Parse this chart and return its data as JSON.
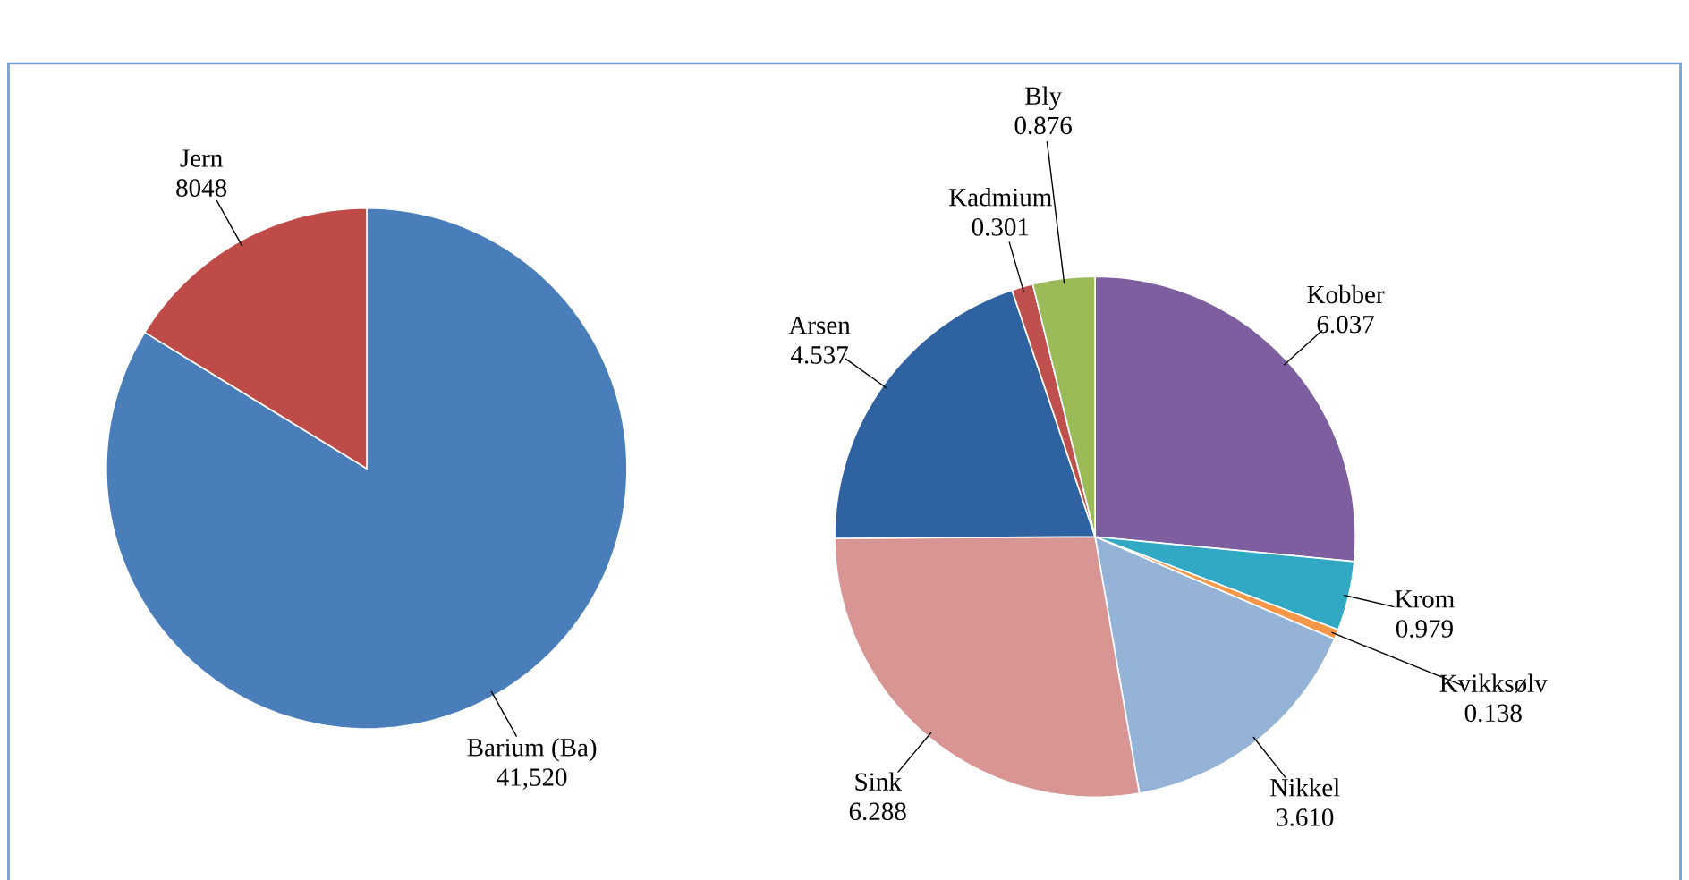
{
  "chart_data": [
    {
      "type": "pie",
      "categories": [
        "Barium (Ba)",
        "Jern"
      ],
      "values": [
        41520,
        8048
      ],
      "value_labels": [
        "41,520",
        "8048"
      ],
      "colors": [
        "#4a7ebb",
        "#be4b48"
      ]
    },
    {
      "type": "pie",
      "categories": [
        "Kobber",
        "Krom",
        "Kvikksølv",
        "Nikkel",
        "Sink",
        "Arsen",
        "Kadmium",
        "Bly"
      ],
      "values": [
        6.037,
        0.979,
        0.138,
        3.61,
        6.288,
        4.537,
        0.301,
        0.876
      ],
      "value_labels": [
        "6.037",
        "0.979",
        "0.138",
        "3.610",
        "6.288",
        "4.537",
        "0.301",
        "0.876"
      ],
      "colors": [
        "#7d5fa0",
        "#31a9c4",
        "#f79646",
        "#95b3d7",
        "#d99594",
        "#2e62a0",
        "#c0504d",
        "#9bbb59"
      ]
    }
  ]
}
